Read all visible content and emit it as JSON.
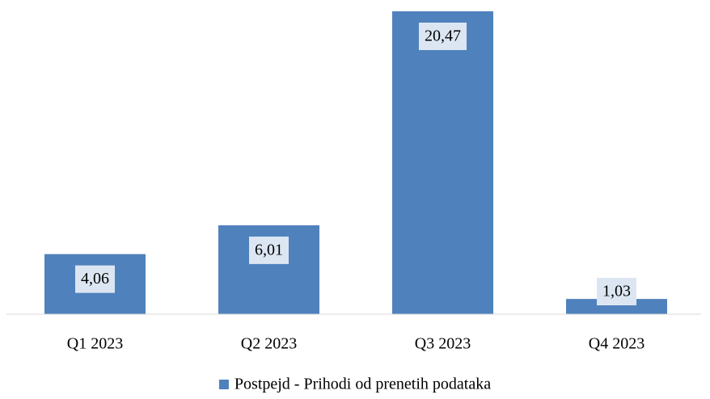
{
  "chart_data": {
    "type": "bar",
    "categories": [
      "Q1 2023",
      "Q2 2023",
      "Q3 2023",
      "Q4 2023"
    ],
    "series": [
      {
        "name": "Postpejd - Prihodi od prenetih podataka",
        "color": "#4f81bd",
        "values": [
          4.06,
          6.01,
          20.47,
          1.03
        ],
        "value_labels": [
          "4,06",
          "6,01",
          "20,47",
          "1,03"
        ]
      }
    ],
    "ylim": [
      0,
      20.47
    ],
    "grid": false,
    "legend": "bottom"
  }
}
